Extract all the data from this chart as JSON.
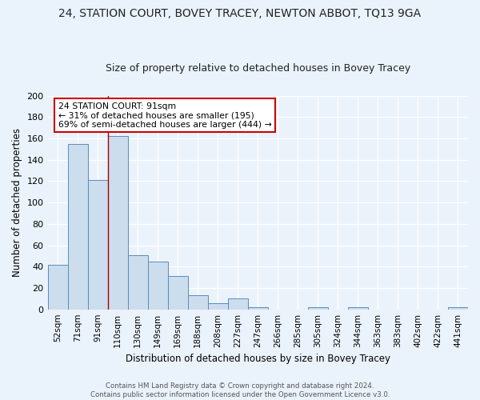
{
  "title": "24, STATION COURT, BOVEY TRACEY, NEWTON ABBOT, TQ13 9GA",
  "subtitle": "Size of property relative to detached houses in Bovey Tracey",
  "xlabel": "Distribution of detached houses by size in Bovey Tracey",
  "ylabel": "Number of detached properties",
  "categories": [
    "52sqm",
    "71sqm",
    "91sqm",
    "110sqm",
    "130sqm",
    "149sqm",
    "169sqm",
    "188sqm",
    "208sqm",
    "227sqm",
    "247sqm",
    "266sqm",
    "285sqm",
    "305sqm",
    "324sqm",
    "344sqm",
    "363sqm",
    "383sqm",
    "402sqm",
    "422sqm",
    "441sqm"
  ],
  "values": [
    42,
    155,
    121,
    162,
    51,
    45,
    31,
    13,
    6,
    10,
    2,
    0,
    0,
    2,
    0,
    2,
    0,
    0,
    0,
    0,
    2
  ],
  "bar_color": "#ccdded",
  "bar_edge_color": "#5b8db8",
  "marker_index": 2,
  "marker_line_color": "#aa0000",
  "annotation_line1": "24 STATION COURT: 91sqm",
  "annotation_line2": "← 31% of detached houses are smaller (195)",
  "annotation_line3": "69% of semi-detached houses are larger (444) →",
  "annotation_box_color": "#ffffff",
  "annotation_box_edge": "#cc0000",
  "ylim": [
    0,
    200
  ],
  "yticks": [
    0,
    20,
    40,
    60,
    80,
    100,
    120,
    140,
    160,
    180,
    200
  ],
  "footnote1": "Contains HM Land Registry data © Crown copyright and database right 2024.",
  "footnote2": "Contains public sector information licensed under the Open Government Licence v3.0.",
  "background_color": "#eaf2fb",
  "grid_color": "#ffffff",
  "title_fontsize": 10,
  "subtitle_fontsize": 9,
  "tick_fontsize": 7.5,
  "ylabel_fontsize": 8.5,
  "xlabel_fontsize": 8.5
}
